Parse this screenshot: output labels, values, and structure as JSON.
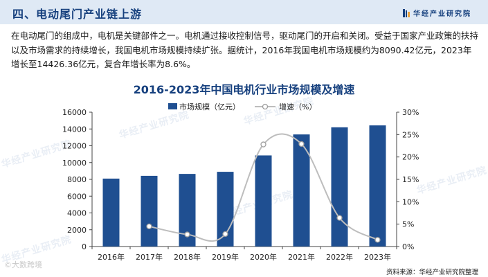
{
  "header": {
    "title": "四、电动尾门产业链上游",
    "brand": "华经产业研究院"
  },
  "paragraph": "在电动尾门的组成中，电机是关键部件之一。电机通过接收控制信号，驱动尾门的开启和关闭。受益于国家产业政策的扶持以及市场需求的持续增长，我国电机市场规模持续扩张。据统计，2016年我国电机市场规模约为8090.42亿元，2023年增长至14426.36亿元，复合年增长率为8.6%。",
  "watermark": "华经产业研究院",
  "corner_watermark": "©大数跨境",
  "source": "资料来源：华经产业研究院整理",
  "colors": {
    "bar": "#1f4f91",
    "line": "#bdbdbd",
    "title": "#16407e",
    "header_bg": "#dfe9f5"
  },
  "chart_data": {
    "type": "bar+line",
    "title": "2016-2023年中国电机行业市场规模及增速",
    "categories": [
      "2016年",
      "2017年",
      "2018年",
      "2019年",
      "2020年",
      "2021年",
      "2022年",
      "2023年"
    ],
    "series": [
      {
        "name": "市场规模（亿元）",
        "type": "bar",
        "axis": "left",
        "values": [
          8090.42,
          8420,
          8650,
          8900,
          10850,
          13350,
          14200,
          14426.36
        ]
      },
      {
        "name": "增速（%）",
        "type": "line",
        "axis": "right",
        "smooth": true,
        "values": [
          null,
          4.5,
          2.7,
          2.8,
          22.8,
          22.9,
          6.4,
          1.5
        ]
      }
    ],
    "y_left": {
      "min": 0,
      "max": 16000,
      "ticks": [
        "0",
        "2000",
        "4000",
        "6000",
        "8000",
        "10000",
        "12000",
        "14000",
        "16000"
      ]
    },
    "y_right": {
      "min": 0,
      "max": 30,
      "ticks": [
        "0%",
        "5%",
        "10%",
        "15%",
        "20%",
        "25%",
        "30%"
      ]
    },
    "legend_position": "top-center",
    "grid": false
  }
}
